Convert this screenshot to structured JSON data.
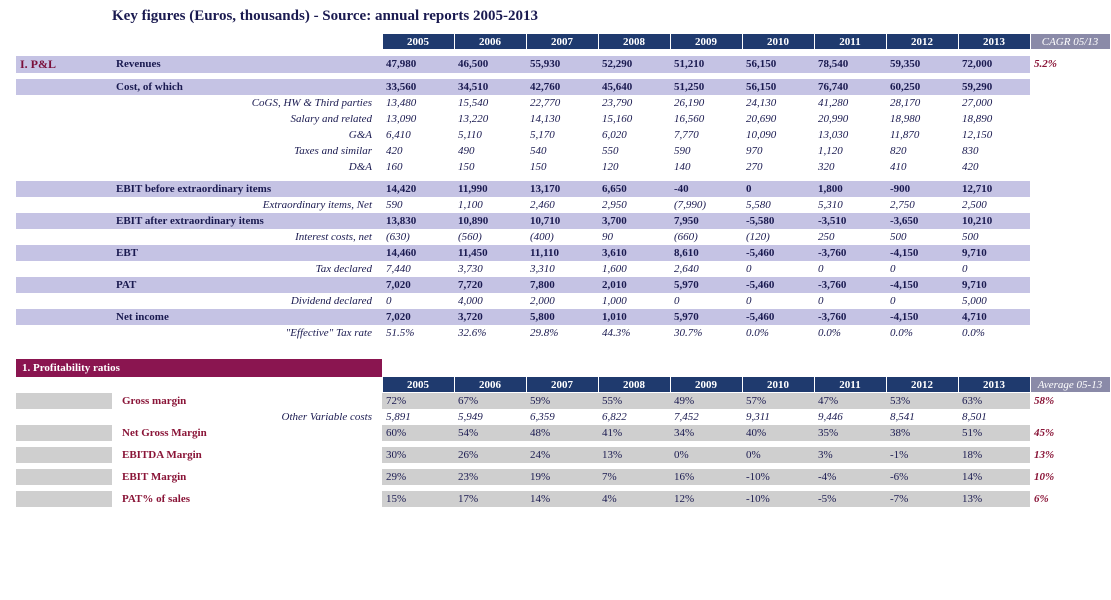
{
  "title": "Key figures (Euros, thousands) - Source: annual reports 2005-2013",
  "years": [
    "2005",
    "2006",
    "2007",
    "2008",
    "2009",
    "2010",
    "2011",
    "2012",
    "2013"
  ],
  "cagr_head": "CAGR 05/13",
  "avg_head": "Average 05-13",
  "section1": "I. P&L",
  "section2": "1. Profitability ratios",
  "colors": {
    "year_head_bg": "#1f3a6e",
    "cagr_head_bg": "#8a8aa8",
    "row_purple_bg": "#c5c3e4",
    "row_grey_bg": "#cfcfcf",
    "section_bar_bg": "#8a1550",
    "maroon_text": "#8a1538",
    "navy_text": "#1a1a50"
  },
  "pl": [
    {
      "k": "main",
      "label": "Revenues",
      "v": [
        "47,980",
        "46,500",
        "55,930",
        "52,290",
        "51,210",
        "56,150",
        "78,540",
        "59,350",
        "72,000"
      ],
      "cagr": "5.2%"
    },
    {
      "k": "spacer"
    },
    {
      "k": "main",
      "label": "Cost, of which",
      "v": [
        "33,560",
        "34,510",
        "42,760",
        "45,640",
        "51,250",
        "56,150",
        "76,740",
        "60,250",
        "59,290"
      ],
      "cagr": ""
    },
    {
      "k": "sub",
      "label": "CoGS, HW & Third parties",
      "v": [
        "13,480",
        "15,540",
        "22,770",
        "23,790",
        "26,190",
        "24,130",
        "41,280",
        "28,170",
        "27,000"
      ]
    },
    {
      "k": "sub",
      "label": "Salary and related",
      "v": [
        "13,090",
        "13,220",
        "14,130",
        "15,160",
        "16,560",
        "20,690",
        "20,990",
        "18,980",
        "18,890"
      ]
    },
    {
      "k": "sub",
      "label": "G&A",
      "v": [
        "6,410",
        "5,110",
        "5,170",
        "6,020",
        "7,770",
        "10,090",
        "13,030",
        "11,870",
        "12,150"
      ]
    },
    {
      "k": "sub",
      "label": "Taxes and similar",
      "v": [
        "420",
        "490",
        "540",
        "550",
        "590",
        "970",
        "1,120",
        "820",
        "830"
      ]
    },
    {
      "k": "sub",
      "label": "D&A",
      "v": [
        "160",
        "150",
        "150",
        "120",
        "140",
        "270",
        "320",
        "410",
        "420"
      ]
    },
    {
      "k": "spacer"
    },
    {
      "k": "main",
      "label": "EBIT before extraordinary items",
      "v": [
        "14,420",
        "11,990",
        "13,170",
        "6,650",
        "-40",
        "0",
        "1,800",
        "-900",
        "12,710"
      ],
      "cagr": ""
    },
    {
      "k": "sub",
      "label": "Extraordinary items, Net",
      "v": [
        "590",
        "1,100",
        "2,460",
        "2,950",
        "(7,990)",
        "5,580",
        "5,310",
        "2,750",
        "2,500"
      ]
    },
    {
      "k": "main",
      "label": "EBIT after extraordinary items",
      "v": [
        "13,830",
        "10,890",
        "10,710",
        "3,700",
        "7,950",
        "-5,580",
        "-3,510",
        "-3,650",
        "10,210"
      ],
      "cagr": ""
    },
    {
      "k": "sub",
      "label": "Interest costs, net",
      "v": [
        "(630)",
        "(560)",
        "(400)",
        "90",
        "(660)",
        "(120)",
        "250",
        "500",
        "500"
      ]
    },
    {
      "k": "main",
      "label": "EBT",
      "v": [
        "14,460",
        "11,450",
        "11,110",
        "3,610",
        "8,610",
        "-5,460",
        "-3,760",
        "-4,150",
        "9,710"
      ],
      "cagr": ""
    },
    {
      "k": "sub",
      "label": "Tax declared",
      "v": [
        "7,440",
        "3,730",
        "3,310",
        "1,600",
        "2,640",
        "0",
        "0",
        "0",
        "0"
      ]
    },
    {
      "k": "main",
      "label": "PAT",
      "v": [
        "7,020",
        "7,720",
        "7,800",
        "2,010",
        "5,970",
        "-5,460",
        "-3,760",
        "-4,150",
        "9,710"
      ],
      "cagr": ""
    },
    {
      "k": "sub",
      "label": "Dividend declared",
      "v": [
        "0",
        "4,000",
        "2,000",
        "1,000",
        "0",
        "0",
        "0",
        "0",
        "5,000"
      ]
    },
    {
      "k": "main",
      "label": "Net income",
      "v": [
        "7,020",
        "3,720",
        "5,800",
        "1,010",
        "5,970",
        "-5,460",
        "-3,760",
        "-4,150",
        "4,710"
      ],
      "cagr": ""
    },
    {
      "k": "sub",
      "label": "\"Effective\" Tax rate",
      "v": [
        "51.5%",
        "32.6%",
        "29.8%",
        "44.3%",
        "30.7%",
        "0.0%",
        "0.0%",
        "0.0%",
        "0.0%"
      ]
    }
  ],
  "prof": [
    {
      "k": "grey",
      "label": "Gross margin",
      "v": [
        "72%",
        "67%",
        "59%",
        "55%",
        "49%",
        "57%",
        "47%",
        "53%",
        "63%"
      ],
      "avg": "58%"
    },
    {
      "k": "sub",
      "label": "Other Variable costs",
      "v": [
        "5,891",
        "5,949",
        "6,359",
        "6,822",
        "7,452",
        "9,311",
        "9,446",
        "8,541",
        "8,501"
      ],
      "avg": ""
    },
    {
      "k": "grey",
      "label": "Net Gross Margin",
      "v": [
        "60%",
        "54%",
        "48%",
        "41%",
        "34%",
        "40%",
        "35%",
        "38%",
        "51%"
      ],
      "avg": "45%"
    },
    {
      "k": "spacer"
    },
    {
      "k": "grey",
      "label": "EBITDA Margin",
      "v": [
        "30%",
        "26%",
        "24%",
        "13%",
        "0%",
        "0%",
        "3%",
        "-1%",
        "18%"
      ],
      "avg": "13%"
    },
    {
      "k": "spacer"
    },
    {
      "k": "grey",
      "label": "EBIT Margin",
      "v": [
        "29%",
        "23%",
        "19%",
        "7%",
        "16%",
        "-10%",
        "-4%",
        "-6%",
        "14%"
      ],
      "avg": "10%"
    },
    {
      "k": "spacer"
    },
    {
      "k": "grey",
      "label": "PAT% of sales",
      "v": [
        "15%",
        "17%",
        "14%",
        "4%",
        "12%",
        "-10%",
        "-5%",
        "-7%",
        "13%"
      ],
      "avg": "6%"
    }
  ]
}
